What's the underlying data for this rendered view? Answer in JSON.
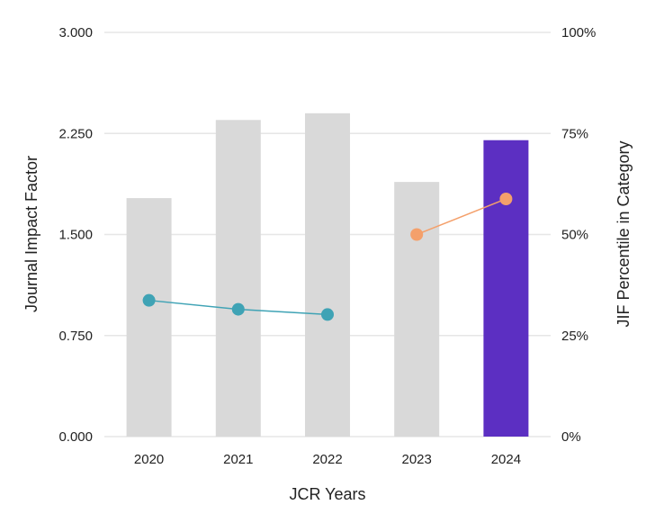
{
  "chart_data": {
    "type": "bar",
    "categories": [
      "2020",
      "2021",
      "2022",
      "2023",
      "2024"
    ],
    "series": [
      {
        "kind": "bar",
        "axis": "left",
        "values": [
          1.77,
          2.35,
          2.4,
          1.89,
          2.2
        ],
        "colors": [
          "#d9d9d9",
          "#d9d9d9",
          "#d9d9d9",
          "#d9d9d9",
          "#5c2fc2"
        ]
      },
      {
        "kind": "line",
        "axis": "right",
        "color": "#3fa3b5",
        "points": [
          {
            "x": "2020",
            "y": 33.7
          },
          {
            "x": "2021",
            "y": 31.5
          },
          {
            "x": "2022",
            "y": 30.2
          }
        ]
      },
      {
        "kind": "line",
        "axis": "right",
        "color": "#f4a06b",
        "points": [
          {
            "x": "2023",
            "y": 50.0
          },
          {
            "x": "2024",
            "y": 58.8
          }
        ]
      }
    ],
    "xlabel": "JCR Years",
    "ylabel": "Journal Impact Factor",
    "y2label": "JIF Percentile in Category",
    "ylim": [
      0,
      3
    ],
    "y2lim": [
      0,
      100
    ],
    "yticks": [
      "0.000",
      "0.750",
      "1.500",
      "2.250",
      "3.000"
    ],
    "y2ticks": [
      "0%",
      "25%",
      "50%",
      "75%",
      "100%"
    ],
    "grid": true,
    "gridline_color": "#e6e6e6"
  }
}
